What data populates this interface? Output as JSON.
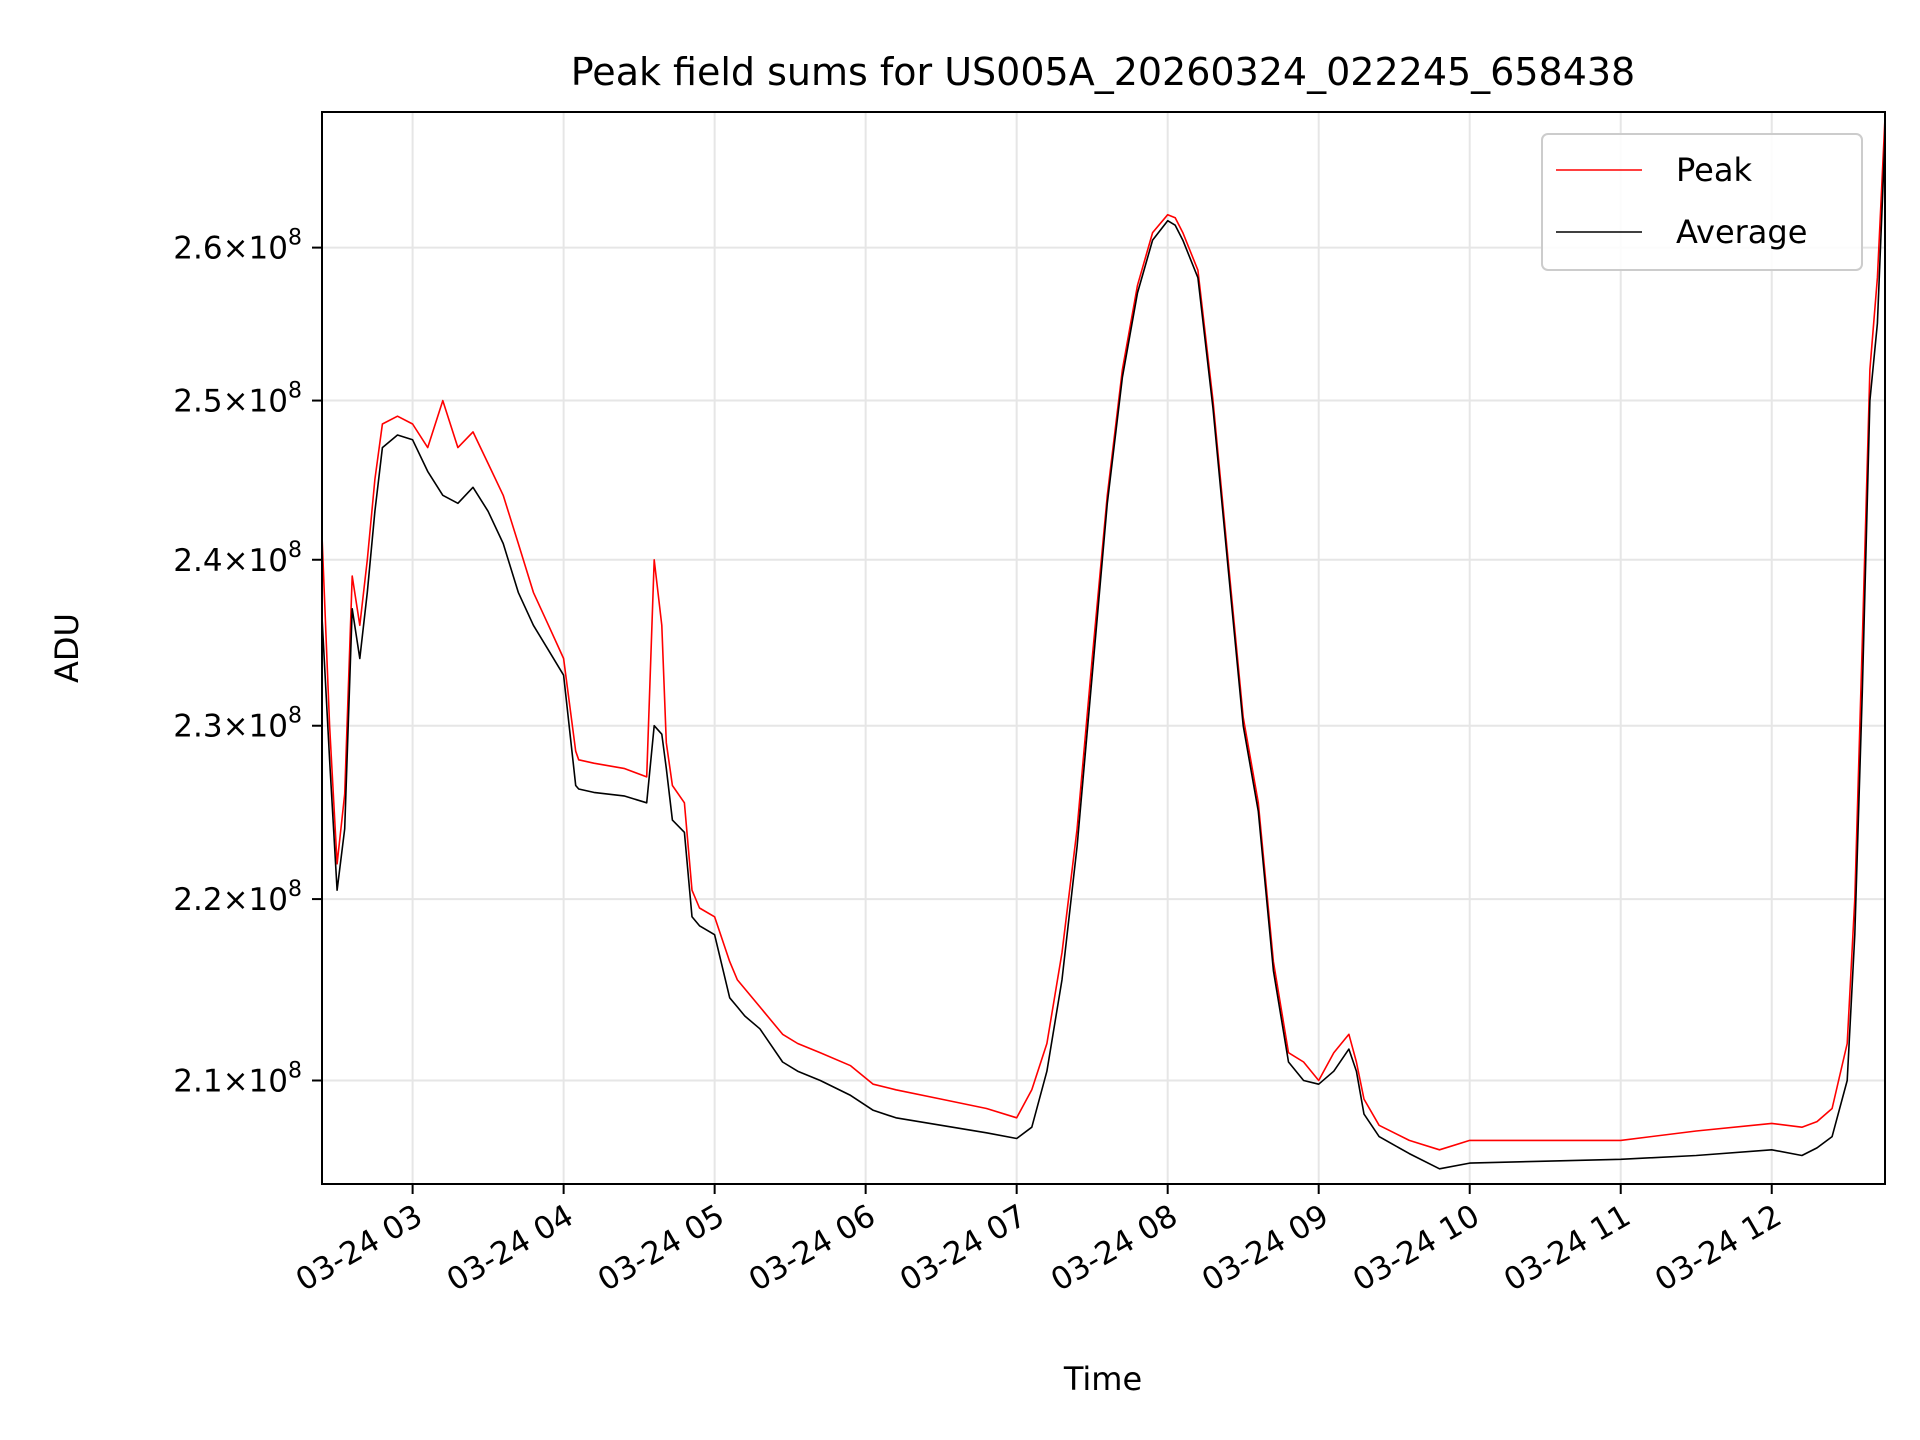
{
  "chart_data": {
    "type": "line",
    "title": "Peak field sums for US005A_20260324_022245_658438",
    "xlabel": "Time",
    "ylabel": "ADU",
    "x_ticks": [
      "03-24 03",
      "03-24 04",
      "03-24 05",
      "03-24 06",
      "03-24 07",
      "03-24 08",
      "03-24 09",
      "03-24 10",
      "03-24 11",
      "03-24 12"
    ],
    "x_tick_hours": [
      3,
      4,
      5,
      6,
      7,
      8,
      9,
      10,
      11,
      12
    ],
    "xlim": [
      2.4,
      12.75
    ],
    "y_scale": "log",
    "y_ticks": [
      {
        "value": 210000000,
        "mantissa": "2.1",
        "exponent": "8"
      },
      {
        "value": 220000000,
        "mantissa": "2.2",
        "exponent": "8"
      },
      {
        "value": 230000000,
        "mantissa": "2.3",
        "exponent": "8"
      },
      {
        "value": 240000000,
        "mantissa": "2.4",
        "exponent": "8"
      },
      {
        "value": 250000000,
        "mantissa": "2.5",
        "exponent": "8"
      },
      {
        "value": 260000000,
        "mantissa": "2.6",
        "exponent": "8"
      }
    ],
    "ylim": [
      204500000,
      269200000
    ],
    "grid": true,
    "legend_position": "top-right",
    "series": [
      {
        "name": "Peak",
        "color": "#ff0000",
        "x": [
          2.4,
          2.45,
          2.5,
          2.55,
          2.6,
          2.65,
          2.7,
          2.75,
          2.8,
          2.9,
          3.0,
          3.1,
          3.2,
          3.3,
          3.4,
          3.5,
          3.6,
          3.7,
          3.8,
          3.9,
          4.0,
          4.08,
          4.1,
          4.2,
          4.4,
          4.55,
          4.6,
          4.65,
          4.68,
          4.72,
          4.8,
          4.85,
          4.9,
          5.0,
          5.1,
          5.15,
          5.2,
          5.3,
          5.45,
          5.55,
          5.7,
          5.9,
          6.05,
          6.2,
          6.5,
          6.8,
          7.0,
          7.1,
          7.2,
          7.3,
          7.4,
          7.5,
          7.6,
          7.7,
          7.8,
          7.9,
          8.0,
          8.05,
          8.1,
          8.2,
          8.3,
          8.4,
          8.5,
          8.6,
          8.7,
          8.8,
          8.9,
          9.0,
          9.1,
          9.2,
          9.25,
          9.3,
          9.4,
          9.6,
          9.8,
          10.0,
          10.5,
          11.0,
          11.5,
          12.0,
          12.2,
          12.3,
          12.4,
          12.5,
          12.55,
          12.6,
          12.65,
          12.7,
          12.75
        ],
        "values": [
          241500000,
          230000000,
          222000000,
          226000000,
          239000000,
          236000000,
          240000000,
          245000000,
          248500000,
          249000000,
          248500000,
          247000000,
          250000000,
          247000000,
          248000000,
          246000000,
          244000000,
          241000000,
          238000000,
          236000000,
          234000000,
          228500000,
          228000000,
          227800000,
          227500000,
          227000000,
          240000000,
          236000000,
          229000000,
          226500000,
          225500000,
          220500000,
          219500000,
          219000000,
          216500000,
          215500000,
          215000000,
          214000000,
          212500000,
          212000000,
          211500000,
          210800000,
          209800000,
          209500000,
          209000000,
          208500000,
          208000000,
          209500000,
          212000000,
          217000000,
          224000000,
          234000000,
          244000000,
          252000000,
          257500000,
          261000000,
          262200000,
          262000000,
          261000000,
          258500000,
          250000000,
          240000000,
          230500000,
          225500000,
          216500000,
          211500000,
          211000000,
          210000000,
          211500000,
          212500000,
          211000000,
          209000000,
          207600000,
          206800000,
          206300000,
          206800000,
          206800000,
          206800000,
          207300000,
          207700000,
          207500000,
          207800000,
          208500000,
          212000000,
          220000000,
          235000000,
          252000000,
          258000000,
          268800000
        ]
      },
      {
        "name": "Average",
        "color": "#000000",
        "x": [
          2.4,
          2.45,
          2.5,
          2.55,
          2.6,
          2.65,
          2.7,
          2.75,
          2.8,
          2.9,
          3.0,
          3.1,
          3.2,
          3.3,
          3.4,
          3.5,
          3.6,
          3.7,
          3.8,
          3.9,
          4.0,
          4.08,
          4.1,
          4.2,
          4.4,
          4.55,
          4.6,
          4.65,
          4.68,
          4.72,
          4.8,
          4.85,
          4.9,
          5.0,
          5.1,
          5.15,
          5.2,
          5.3,
          5.45,
          5.55,
          5.7,
          5.9,
          6.05,
          6.2,
          6.5,
          6.8,
          7.0,
          7.1,
          7.2,
          7.3,
          7.4,
          7.5,
          7.6,
          7.7,
          7.8,
          7.9,
          8.0,
          8.05,
          8.1,
          8.2,
          8.3,
          8.4,
          8.5,
          8.6,
          8.7,
          8.8,
          8.9,
          9.0,
          9.1,
          9.2,
          9.25,
          9.3,
          9.4,
          9.6,
          9.8,
          10.0,
          10.5,
          11.0,
          11.5,
          12.0,
          12.2,
          12.3,
          12.4,
          12.5,
          12.55,
          12.6,
          12.65,
          12.7,
          12.75
        ],
        "values": [
          236500000,
          228000000,
          220500000,
          224000000,
          237000000,
          234000000,
          238000000,
          243000000,
          247000000,
          247800000,
          247500000,
          245500000,
          244000000,
          243500000,
          244500000,
          243000000,
          241000000,
          238000000,
          236000000,
          234500000,
          233000000,
          226500000,
          226300000,
          226100000,
          225900000,
          225500000,
          230000000,
          229500000,
          227500000,
          224500000,
          223800000,
          219000000,
          218500000,
          218000000,
          214500000,
          214000000,
          213500000,
          212800000,
          211000000,
          210500000,
          210000000,
          209200000,
          208400000,
          208000000,
          207600000,
          207200000,
          206900000,
          207500000,
          210500000,
          215500000,
          223000000,
          233000000,
          243500000,
          251500000,
          257000000,
          260500000,
          261800000,
          261500000,
          260500000,
          258000000,
          249500000,
          239500000,
          230000000,
          225000000,
          216000000,
          211000000,
          210000000,
          209800000,
          210500000,
          211700000,
          210500000,
          208200000,
          207000000,
          206100000,
          205300000,
          205600000,
          205700000,
          205800000,
          206000000,
          206300000,
          206000000,
          206400000,
          207000000,
          210000000,
          218000000,
          232000000,
          250000000,
          255000000,
          267500000
        ]
      }
    ]
  }
}
